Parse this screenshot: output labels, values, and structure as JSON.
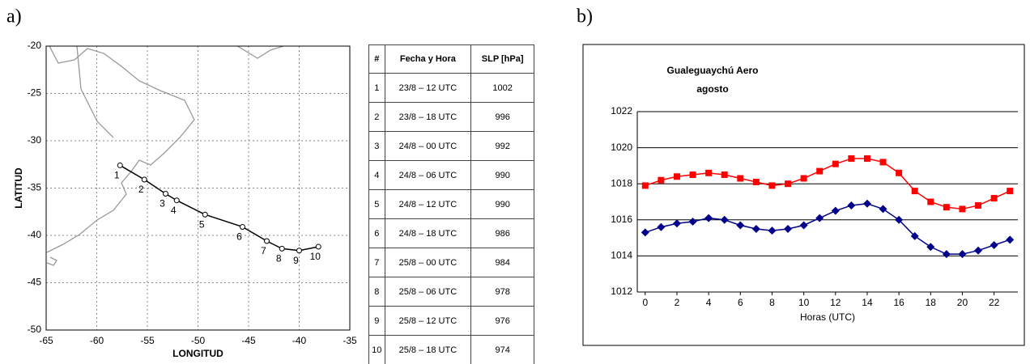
{
  "panel_labels": [
    "a)",
    "b)"
  ],
  "chart_data": [
    {
      "type": "line",
      "xlabel": "LONGITUD",
      "ylabel": "LATITUD",
      "x": [
        -57.7,
        -55.3,
        -53.2,
        -52.1,
        -49.3,
        -45.6,
        -43.2,
        -41.7,
        -40.0,
        -38.1
      ],
      "series": [
        {
          "color": "#000000",
          "marker": "circle",
          "values": [
            -32.6,
            -34.1,
            -35.6,
            -36.3,
            -37.8,
            -39.1,
            -40.6,
            -41.4,
            -41.6,
            -41.2
          ]
        }
      ],
      "point_labels": [
        "1",
        "2",
        "3",
        "4",
        "5",
        "6",
        "7",
        "8",
        "9",
        "10"
      ],
      "xlim": [
        -65,
        -35
      ],
      "xticks": [
        -65,
        -60,
        -55,
        -50,
        -45,
        -40,
        -35
      ],
      "ylim": [
        -50,
        -20
      ],
      "yticks": [
        -50,
        -45,
        -40,
        -35,
        -30,
        -25,
        -20
      ],
      "grid": "both"
    },
    {
      "type": "line",
      "title": "Gualeguaychú Aero",
      "subtitle": "agosto",
      "xlabel": "Horas (UTC)",
      "x": [
        0,
        1,
        2,
        3,
        4,
        5,
        6,
        7,
        8,
        9,
        10,
        11,
        12,
        13,
        14,
        15,
        16,
        17,
        18,
        19,
        20,
        21,
        22,
        23
      ],
      "series": [
        {
          "color": "#ff0000",
          "marker": "square",
          "values": [
            1017.9,
            1018.2,
            1018.4,
            1018.5,
            1018.6,
            1018.5,
            1018.3,
            1018.1,
            1017.9,
            1018.0,
            1018.3,
            1018.7,
            1019.1,
            1019.4,
            1019.4,
            1019.2,
            1018.6,
            1017.6,
            1017.0,
            1016.7,
            1016.6,
            1016.8,
            1017.2,
            1017.6
          ]
        },
        {
          "color": "#00008b",
          "marker": "diamond",
          "values": [
            1015.3,
            1015.6,
            1015.8,
            1015.9,
            1016.1,
            1016.0,
            1015.7,
            1015.5,
            1015.4,
            1015.5,
            1015.7,
            1016.1,
            1016.5,
            1016.8,
            1016.9,
            1016.6,
            1016.0,
            1015.1,
            1014.5,
            1014.1,
            1014.1,
            1014.3,
            1014.6,
            1014.9
          ]
        }
      ],
      "xlim": [
        -0.5,
        23.5
      ],
      "xticks": [
        0,
        2,
        4,
        6,
        8,
        10,
        12,
        14,
        16,
        18,
        20,
        22
      ],
      "ylim": [
        1012,
        1022
      ],
      "yticks": [
        1012,
        1014,
        1016,
        1018,
        1020,
        1022
      ],
      "grid": "y"
    }
  ],
  "table": {
    "header": [
      "#",
      "Fecha y Hora",
      "SLP [hPa]"
    ],
    "rows": [
      [
        1,
        "23/8 – 12 UTC",
        1002
      ],
      [
        2,
        "23/8 – 18 UTC",
        996
      ],
      [
        3,
        "24/8 – 00 UTC",
        992
      ],
      [
        4,
        "24/8 – 06 UTC",
        990
      ],
      [
        5,
        "24/8 – 12 UTC",
        990
      ],
      [
        6,
        "24/8 – 18 UTC",
        986
      ],
      [
        7,
        "25/8 – 00 UTC",
        984
      ],
      [
        8,
        "25/8 – 06 UTC",
        978
      ],
      [
        9,
        "25/8 – 12 UTC",
        976
      ],
      [
        10,
        "25/8 – 18 UTC",
        974
      ]
    ]
  }
}
